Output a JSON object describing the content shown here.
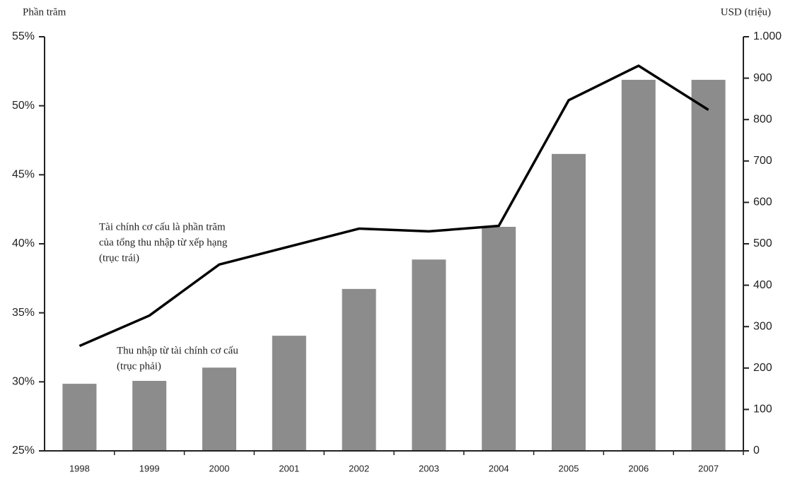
{
  "chart_data": {
    "type": "bar-line",
    "y_label": "Phần trăm",
    "y2_label": "USD (triệu)",
    "categories": [
      "1998",
      "1999",
      "2000",
      "2001",
      "2002",
      "2003",
      "2004",
      "2005",
      "2006",
      "2007"
    ],
    "series": [
      {
        "type": "bar",
        "axis": "y2",
        "color": "#8c8c8c",
        "values": [
          162,
          169,
          201,
          278,
          391,
          462,
          541,
          717,
          896,
          896
        ]
      },
      {
        "type": "line",
        "axis": "y",
        "color": "#000000",
        "values": [
          32.6,
          34.8,
          38.5,
          39.8,
          41.1,
          40.9,
          41.3,
          50.4,
          52.9,
          49.7
        ]
      }
    ],
    "annotations": [
      {
        "lines": [
          "Tài chính cơ cấu là phần trăm",
          "của tổng thu nhập từ xếp hạng",
          "(trục trái)"
        ]
      },
      {
        "lines": [
          "Thu nhập từ tài chính cơ cấu",
          "(trục phải)"
        ]
      }
    ],
    "ylim": [
      25,
      55
    ],
    "yticks": [
      {
        "value": 25,
        "label": "25%"
      },
      {
        "value": 30,
        "label": "30%"
      },
      {
        "value": 35,
        "label": "35%"
      },
      {
        "value": 40,
        "label": "40%"
      },
      {
        "value": 45,
        "label": "45%"
      },
      {
        "value": 50,
        "label": "50%"
      },
      {
        "value": 55,
        "label": "55%"
      }
    ],
    "y2lim": [
      0,
      1000
    ],
    "y2ticks": [
      0,
      100,
      200,
      300,
      400,
      500,
      600,
      700,
      800,
      900,
      {
        "value": 1000,
        "label": "1.000"
      }
    ]
  }
}
